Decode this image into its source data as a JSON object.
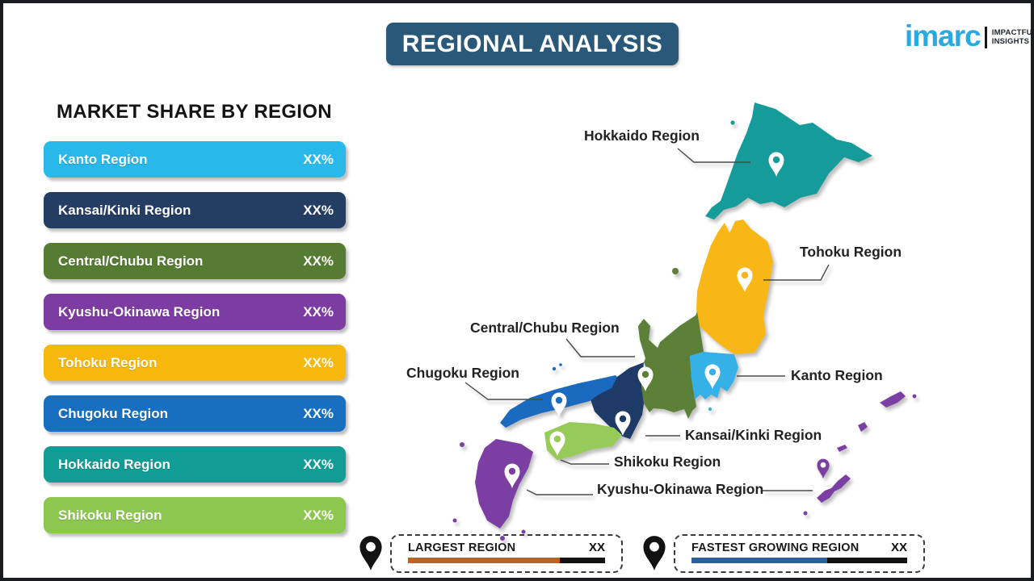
{
  "header": {
    "title": "REGIONAL ANALYSIS",
    "banner_color": "#2A5878",
    "logo": {
      "brand": "imarc",
      "brand_color": "#29A9E1",
      "tagline_line1": "IMPACTFUL",
      "tagline_line2": "INSIGHTS"
    }
  },
  "market_share": {
    "heading": "MARKET SHARE BY REGION",
    "items": [
      {
        "label": "Kanto Region",
        "value": "XX%",
        "color": "#29B8EA"
      },
      {
        "label": "Kansai/Kinki Region",
        "value": "XX%",
        "color": "#243D63"
      },
      {
        "label": "Central/Chubu Region",
        "value": "XX%",
        "color": "#567B33"
      },
      {
        "label": "Kyushu-Okinawa Region",
        "value": "XX%",
        "color": "#7C3CA2"
      },
      {
        "label": "Tohoku Region",
        "value": "XX%",
        "color": "#F6B80D"
      },
      {
        "label": "Chugoku Region",
        "value": "XX%",
        "color": "#186FC0"
      },
      {
        "label": "Hokkaido Region",
        "value": "XX%",
        "color": "#129C96"
      },
      {
        "label": "Shikoku Region",
        "value": "XX%",
        "color": "#8CC750"
      }
    ]
  },
  "map": {
    "pin_color": "#FFFFFF",
    "regions": {
      "hokkaido": {
        "name": "Hokkaido Region",
        "color": "#169B9B"
      },
      "tohoku": {
        "name": "Tohoku Region",
        "color": "#F8B716"
      },
      "chubu": {
        "name": "Central/Chubu Region",
        "color": "#5C8038"
      },
      "kanto": {
        "name": "Kanto Region",
        "color": "#35B1E8"
      },
      "kansai": {
        "name": "Kansai/Kinki Region",
        "color": "#1E3A66"
      },
      "chugoku": {
        "name": "Chugoku Region",
        "color": "#1A6AC0"
      },
      "shikoku": {
        "name": "Shikoku Region",
        "color": "#97CB59"
      },
      "kyushu_okinawa": {
        "name": "Kyushu-Okinawa Region",
        "color": "#7B3FA4"
      }
    },
    "labels": [
      {
        "text": "Hokkaido Region"
      },
      {
        "text": "Tohoku Region"
      },
      {
        "text": "Central/Chubu Region"
      },
      {
        "text": "Chugoku Region"
      },
      {
        "text": "Kanto Region"
      },
      {
        "text": "Kansai/Kinki Region"
      },
      {
        "text": "Shikoku Region"
      },
      {
        "text": "Kyushu-Okinawa Region"
      }
    ]
  },
  "legend": {
    "items": [
      {
        "label": "LARGEST REGION",
        "value": "XX",
        "bar_color": "#C2611B",
        "bar_rest_color": "#121212",
        "fill_percent": 77
      },
      {
        "label": "FASTEST GROWING REGION",
        "value": "XX",
        "bar_color": "#2F5F9E",
        "bar_rest_color": "#121212",
        "fill_percent": 63
      }
    ]
  }
}
